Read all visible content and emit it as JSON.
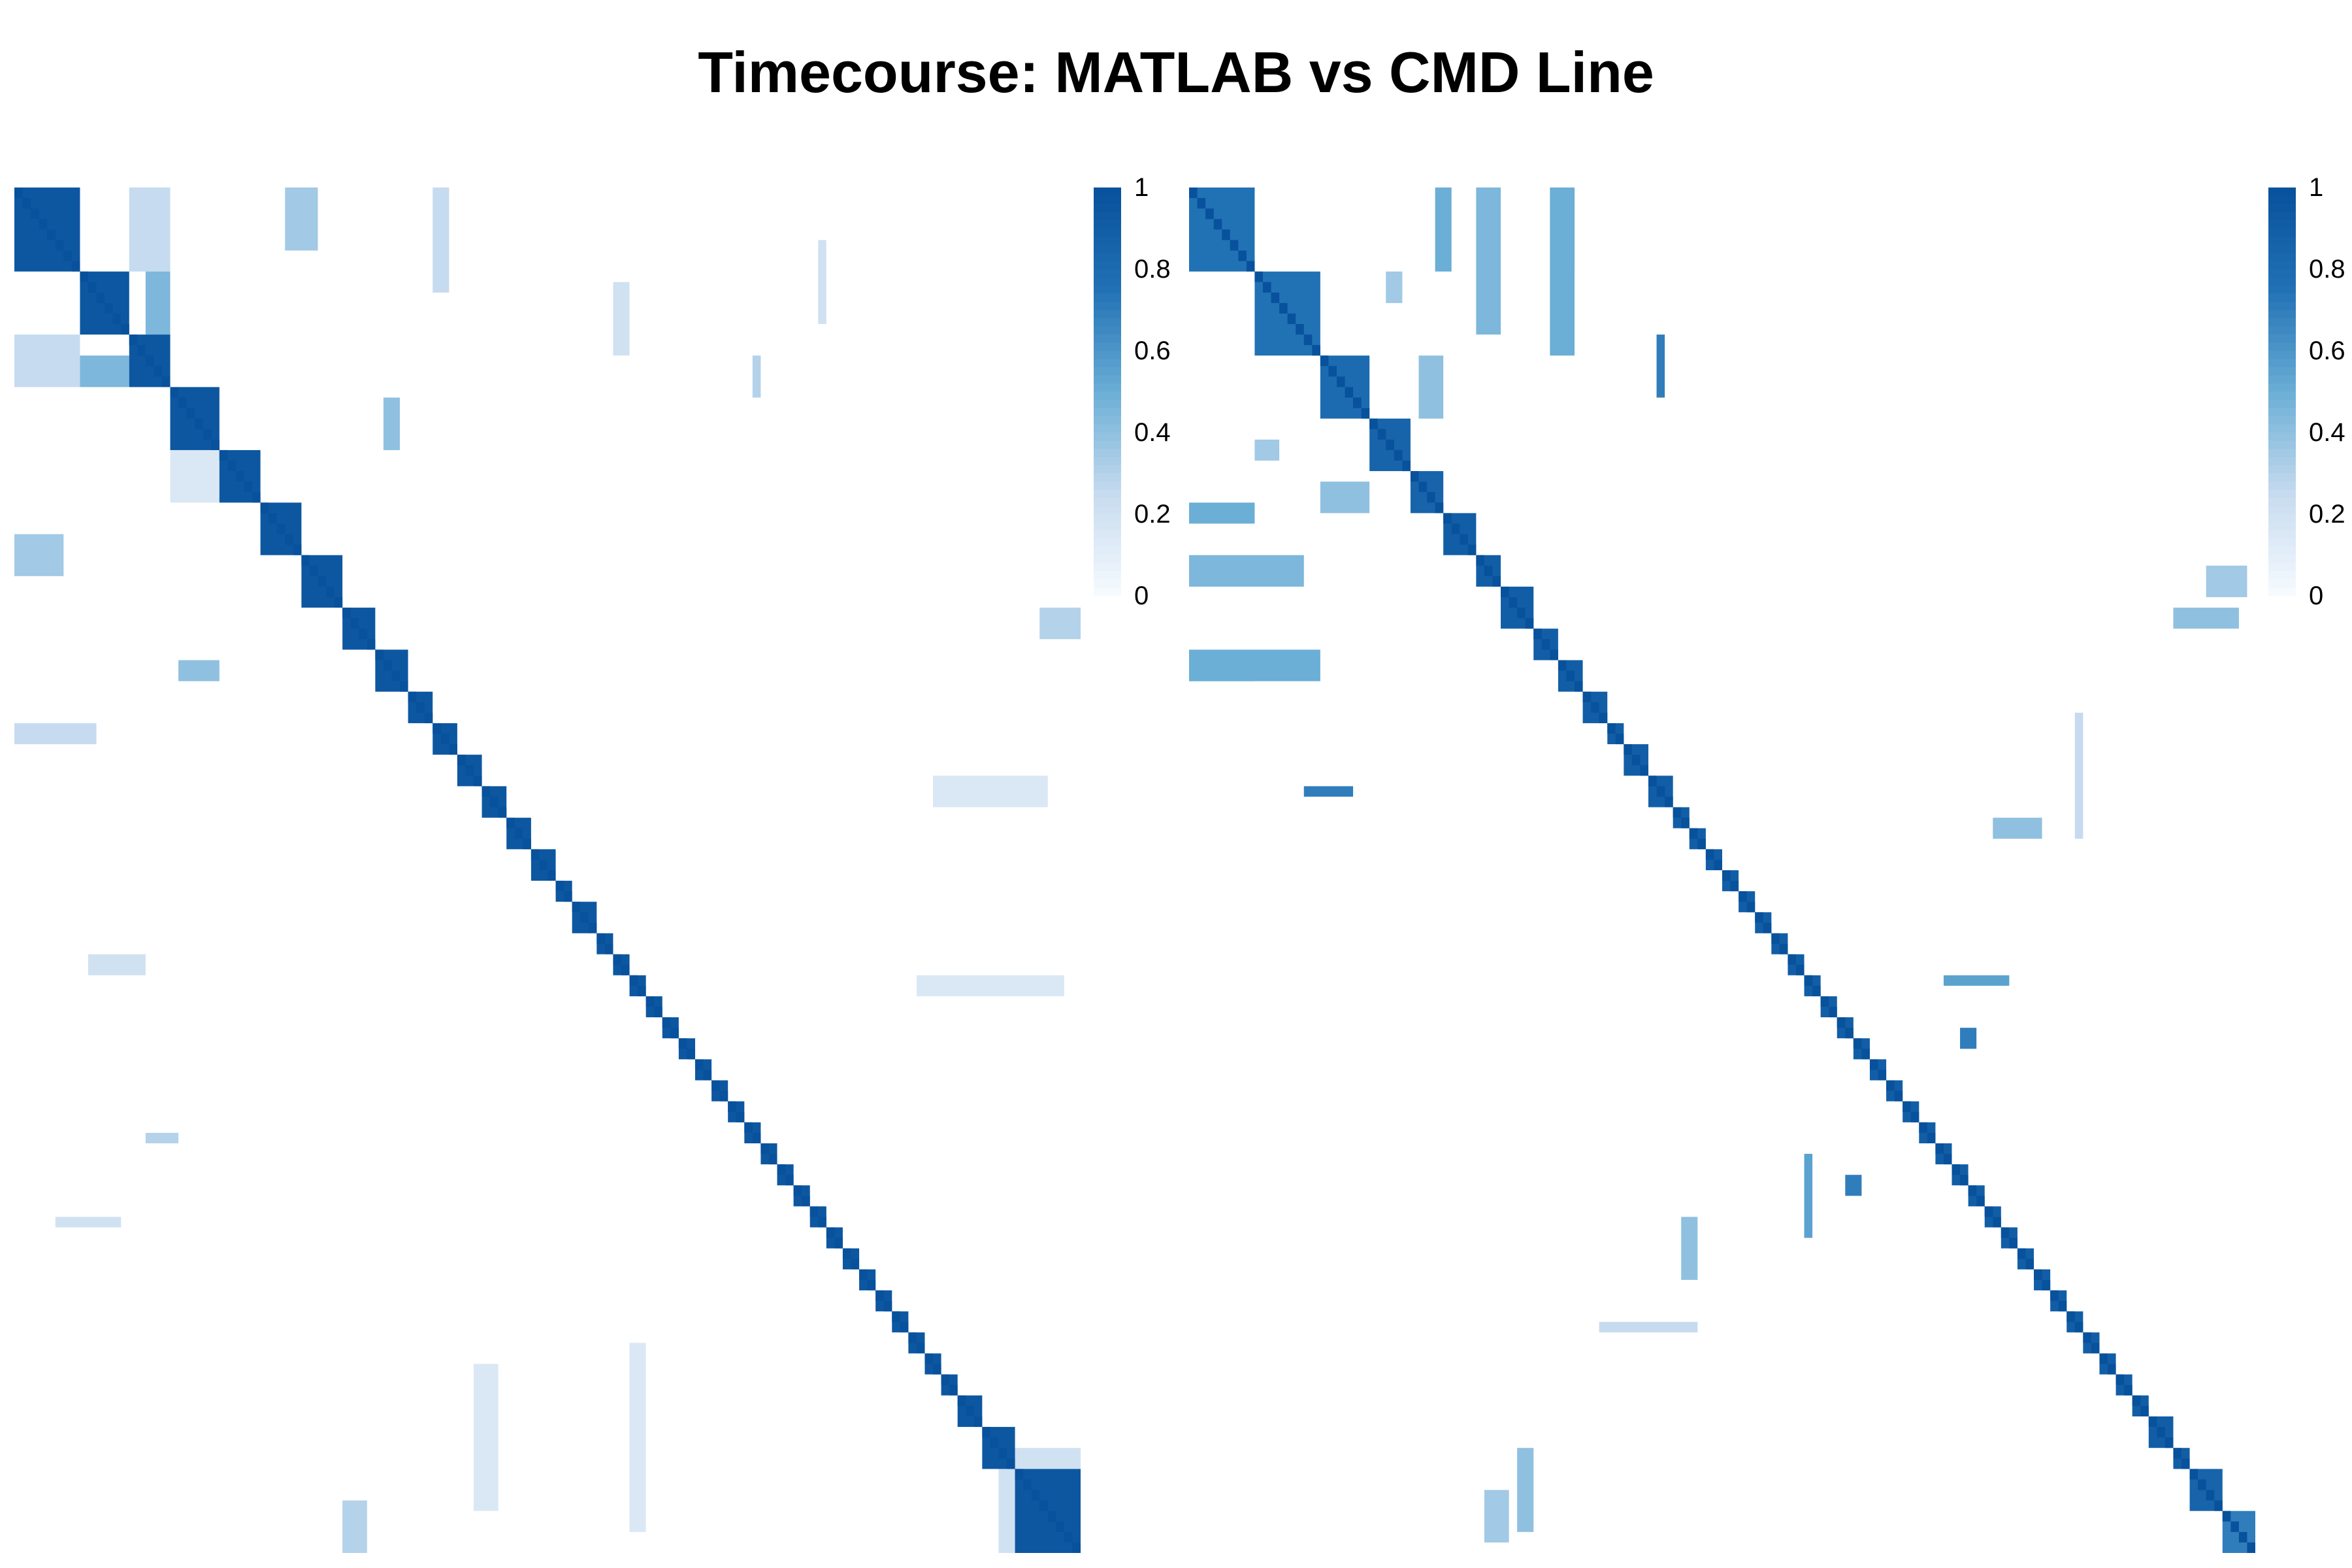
{
  "title": "Timecourse: MATLAB vs CMD Line",
  "chart_data": [
    {
      "type": "heatmap",
      "matrix_size": 130,
      "value_range": [
        0,
        1
      ],
      "colorbar": {
        "ticks": [
          "1",
          "0.8",
          "0.6",
          "0.4",
          "0.2",
          "0"
        ],
        "colors": [
          "#f7fbff",
          "#c6dbef",
          "#6baed6",
          "#2171b5",
          "#08519c"
        ]
      },
      "blocks": [
        {
          "start": 0,
          "size": 8,
          "value": 0.95
        },
        {
          "start": 8,
          "size": 6,
          "value": 0.95
        },
        {
          "start": 14,
          "size": 5,
          "value": 0.95
        },
        {
          "start": 19,
          "size": 6,
          "value": 0.95
        },
        {
          "start": 25,
          "size": 5,
          "value": 0.95
        },
        {
          "start": 30,
          "size": 5,
          "value": 0.95
        },
        {
          "start": 35,
          "size": 5,
          "value": 0.95
        },
        {
          "start": 40,
          "size": 4,
          "value": 0.95
        },
        {
          "start": 44,
          "size": 4,
          "value": 0.95
        },
        {
          "start": 48,
          "size": 3,
          "value": 0.95
        },
        {
          "start": 51,
          "size": 3,
          "value": 0.95
        },
        {
          "start": 54,
          "size": 3,
          "value": 0.95
        },
        {
          "start": 57,
          "size": 3,
          "value": 0.95
        },
        {
          "start": 60,
          "size": 3,
          "value": 0.95
        },
        {
          "start": 63,
          "size": 3,
          "value": 0.95
        },
        {
          "start": 66,
          "size": 2,
          "value": 0.95
        },
        {
          "start": 68,
          "size": 3,
          "value": 0.95
        },
        {
          "start": 71,
          "size": 2,
          "value": 0.95
        },
        {
          "start": 73,
          "size": 2,
          "value": 0.95
        },
        {
          "start": 75,
          "size": 2,
          "value": 0.95
        },
        {
          "start": 77,
          "size": 2,
          "value": 0.95
        },
        {
          "start": 79,
          "size": 2,
          "value": 0.95
        },
        {
          "start": 81,
          "size": 2,
          "value": 0.95
        },
        {
          "start": 83,
          "size": 2,
          "value": 0.95
        },
        {
          "start": 85,
          "size": 2,
          "value": 0.95
        },
        {
          "start": 87,
          "size": 2,
          "value": 0.95
        },
        {
          "start": 89,
          "size": 2,
          "value": 0.95
        },
        {
          "start": 91,
          "size": 2,
          "value": 0.95
        },
        {
          "start": 93,
          "size": 2,
          "value": 0.95
        },
        {
          "start": 95,
          "size": 2,
          "value": 0.95
        },
        {
          "start": 97,
          "size": 2,
          "value": 0.95
        },
        {
          "start": 99,
          "size": 2,
          "value": 0.95
        },
        {
          "start": 101,
          "size": 2,
          "value": 0.95
        },
        {
          "start": 103,
          "size": 2,
          "value": 0.95
        },
        {
          "start": 105,
          "size": 2,
          "value": 0.95
        },
        {
          "start": 107,
          "size": 2,
          "value": 0.95
        },
        {
          "start": 109,
          "size": 2,
          "value": 0.95
        },
        {
          "start": 111,
          "size": 2,
          "value": 0.95
        },
        {
          "start": 113,
          "size": 2,
          "value": 0.95
        },
        {
          "start": 115,
          "size": 3,
          "value": 0.95
        },
        {
          "start": 118,
          "size": 4,
          "value": 0.95
        },
        {
          "start": 122,
          "size": 8,
          "value": 0.95
        }
      ],
      "off_diagonal": [
        {
          "row": 0,
          "col": 14,
          "h": 8,
          "w": 5,
          "value": 0.25
        },
        {
          "row": 14,
          "col": 0,
          "h": 5,
          "w": 8,
          "value": 0.25
        },
        {
          "row": 0,
          "col": 33,
          "h": 6,
          "w": 4,
          "value": 0.35
        },
        {
          "row": 33,
          "col": 0,
          "h": 4,
          "w": 6,
          "value": 0.35
        },
        {
          "row": 16,
          "col": 8,
          "h": 3,
          "w": 6,
          "value": 0.45
        },
        {
          "row": 8,
          "col": 16,
          "h": 6,
          "w": 3,
          "value": 0.45
        },
        {
          "row": 25,
          "col": 19,
          "h": 5,
          "w": 6,
          "value": 0.15
        },
        {
          "row": 45,
          "col": 20,
          "h": 2,
          "w": 5,
          "value": 0.4
        },
        {
          "row": 20,
          "col": 45,
          "h": 5,
          "w": 2,
          "value": 0.4
        },
        {
          "row": 51,
          "col": 0,
          "h": 2,
          "w": 10,
          "value": 0.25
        },
        {
          "row": 0,
          "col": 51,
          "h": 10,
          "w": 2,
          "value": 0.25
        },
        {
          "row": 73,
          "col": 9,
          "h": 2,
          "w": 7,
          "value": 0.2
        },
        {
          "row": 9,
          "col": 73,
          "h": 7,
          "w": 2,
          "value": 0.2
        },
        {
          "row": 125,
          "col": 40,
          "h": 5,
          "w": 3,
          "value": 0.3
        },
        {
          "row": 40,
          "col": 125,
          "h": 3,
          "w": 5,
          "value": 0.3
        },
        {
          "row": 122,
          "col": 120,
          "h": 8,
          "w": 2,
          "value": 0.2
        },
        {
          "row": 120,
          "col": 122,
          "h": 2,
          "w": 8,
          "value": 0.2
        },
        {
          "row": 90,
          "col": 16,
          "h": 1,
          "w": 4,
          "value": 0.3
        },
        {
          "row": 16,
          "col": 90,
          "h": 4,
          "w": 1,
          "value": 0.3
        },
        {
          "row": 98,
          "col": 5,
          "h": 1,
          "w": 8,
          "value": 0.2
        },
        {
          "row": 5,
          "col": 98,
          "h": 8,
          "w": 1,
          "value": 0.2
        },
        {
          "row": 56,
          "col": 112,
          "h": 3,
          "w": 14,
          "value": 0.15
        },
        {
          "row": 112,
          "col": 56,
          "h": 14,
          "w": 3,
          "value": 0.15
        },
        {
          "row": 75,
          "col": 110,
          "h": 2,
          "w": 18,
          "value": 0.15
        },
        {
          "row": 110,
          "col": 75,
          "h": 18,
          "w": 2,
          "value": 0.15
        }
      ]
    },
    {
      "type": "heatmap",
      "matrix_size": 130,
      "value_range": [
        0,
        1
      ],
      "colorbar": {
        "ticks": [
          "1",
          "0.8",
          "0.6",
          "0.4",
          "0.2",
          "0"
        ],
        "colors": [
          "#f7fbff",
          "#c6dbef",
          "#6baed6",
          "#2171b5",
          "#08519c"
        ]
      },
      "blocks": [
        {
          "start": 0,
          "size": 8,
          "value": 0.75
        },
        {
          "start": 8,
          "size": 8,
          "value": 0.75
        },
        {
          "start": 16,
          "size": 6,
          "value": 0.8
        },
        {
          "start": 22,
          "size": 5,
          "value": 0.85
        },
        {
          "start": 27,
          "size": 4,
          "value": 0.85
        },
        {
          "start": 31,
          "size": 4,
          "value": 0.9
        },
        {
          "start": 35,
          "size": 3,
          "value": 0.9
        },
        {
          "start": 38,
          "size": 4,
          "value": 0.9
        },
        {
          "start": 42,
          "size": 3,
          "value": 0.9
        },
        {
          "start": 45,
          "size": 3,
          "value": 0.9
        },
        {
          "start": 48,
          "size": 3,
          "value": 0.9
        },
        {
          "start": 51,
          "size": 2,
          "value": 0.9
        },
        {
          "start": 53,
          "size": 3,
          "value": 0.9
        },
        {
          "start": 56,
          "size": 3,
          "value": 0.9
        },
        {
          "start": 59,
          "size": 2,
          "value": 0.9
        },
        {
          "start": 61,
          "size": 2,
          "value": 0.9
        },
        {
          "start": 63,
          "size": 2,
          "value": 0.9
        },
        {
          "start": 65,
          "size": 2,
          "value": 0.9
        },
        {
          "start": 67,
          "size": 2,
          "value": 0.9
        },
        {
          "start": 69,
          "size": 2,
          "value": 0.9
        },
        {
          "start": 71,
          "size": 2,
          "value": 0.9
        },
        {
          "start": 73,
          "size": 2,
          "value": 0.9
        },
        {
          "start": 75,
          "size": 2,
          "value": 0.9
        },
        {
          "start": 77,
          "size": 2,
          "value": 0.9
        },
        {
          "start": 79,
          "size": 2,
          "value": 0.9
        },
        {
          "start": 81,
          "size": 2,
          "value": 0.9
        },
        {
          "start": 83,
          "size": 2,
          "value": 0.9
        },
        {
          "start": 85,
          "size": 2,
          "value": 0.9
        },
        {
          "start": 87,
          "size": 2,
          "value": 0.9
        },
        {
          "start": 89,
          "size": 2,
          "value": 0.9
        },
        {
          "start": 91,
          "size": 2,
          "value": 0.9
        },
        {
          "start": 93,
          "size": 2,
          "value": 0.9
        },
        {
          "start": 95,
          "size": 2,
          "value": 0.9
        },
        {
          "start": 97,
          "size": 2,
          "value": 0.9
        },
        {
          "start": 99,
          "size": 2,
          "value": 0.9
        },
        {
          "start": 101,
          "size": 2,
          "value": 0.9
        },
        {
          "start": 103,
          "size": 2,
          "value": 0.9
        },
        {
          "start": 105,
          "size": 2,
          "value": 0.9
        },
        {
          "start": 107,
          "size": 2,
          "value": 0.9
        },
        {
          "start": 109,
          "size": 2,
          "value": 0.9
        },
        {
          "start": 111,
          "size": 2,
          "value": 0.9
        },
        {
          "start": 113,
          "size": 2,
          "value": 0.9
        },
        {
          "start": 115,
          "size": 2,
          "value": 0.9
        },
        {
          "start": 117,
          "size": 3,
          "value": 0.9
        },
        {
          "start": 120,
          "size": 2,
          "value": 0.9
        },
        {
          "start": 122,
          "size": 4,
          "value": 0.85
        },
        {
          "start": 126,
          "size": 4,
          "value": 0.7
        }
      ],
      "off_diagonal": [
        {
          "row": 0,
          "col": 30,
          "h": 8,
          "w": 2,
          "value": 0.5
        },
        {
          "row": 30,
          "col": 0,
          "h": 2,
          "w": 8,
          "value": 0.5
        },
        {
          "row": 0,
          "col": 45,
          "h": 8,
          "w": 2,
          "value": 0.6
        },
        {
          "row": 45,
          "col": 0,
          "h": 2,
          "w": 8,
          "value": 0.6
        },
        {
          "row": 35,
          "col": 0,
          "h": 3,
          "w": 14,
          "value": 0.45
        },
        {
          "row": 0,
          "col": 35,
          "h": 14,
          "w": 3,
          "value": 0.45
        },
        {
          "row": 44,
          "col": 0,
          "h": 3,
          "w": 16,
          "value": 0.5
        },
        {
          "row": 0,
          "col": 44,
          "h": 16,
          "w": 3,
          "value": 0.5
        },
        {
          "row": 28,
          "col": 16,
          "h": 3,
          "w": 6,
          "value": 0.4
        },
        {
          "row": 16,
          "col": 28,
          "h": 6,
          "w": 3,
          "value": 0.4
        },
        {
          "row": 57,
          "col": 14,
          "h": 1,
          "w": 6,
          "value": 0.7
        },
        {
          "row": 14,
          "col": 57,
          "h": 6,
          "w": 1,
          "value": 0.7
        },
        {
          "row": 60,
          "col": 98,
          "h": 2,
          "w": 6,
          "value": 0.4
        },
        {
          "row": 98,
          "col": 60,
          "h": 6,
          "w": 2,
          "value": 0.4
        },
        {
          "row": 80,
          "col": 94,
          "h": 2,
          "w": 2,
          "value": 0.7
        },
        {
          "row": 94,
          "col": 80,
          "h": 2,
          "w": 2,
          "value": 0.7
        },
        {
          "row": 75,
          "col": 92,
          "h": 1,
          "w": 8,
          "value": 0.55
        },
        {
          "row": 92,
          "col": 75,
          "h": 8,
          "w": 1,
          "value": 0.55
        },
        {
          "row": 8,
          "col": 24,
          "h": 3,
          "w": 2,
          "value": 0.35
        },
        {
          "row": 24,
          "col": 8,
          "h": 2,
          "w": 3,
          "value": 0.35
        },
        {
          "row": 120,
          "col": 40,
          "h": 8,
          "w": 2,
          "value": 0.4
        },
        {
          "row": 40,
          "col": 120,
          "h": 2,
          "w": 8,
          "value": 0.4
        },
        {
          "row": 36,
          "col": 124,
          "h": 3,
          "w": 5,
          "value": 0.35
        },
        {
          "row": 124,
          "col": 36,
          "h": 5,
          "w": 3,
          "value": 0.35
        },
        {
          "row": 108,
          "col": 50,
          "h": 1,
          "w": 12,
          "value": 0.25
        },
        {
          "row": 50,
          "col": 108,
          "h": 12,
          "w": 1,
          "value": 0.25
        }
      ]
    }
  ]
}
